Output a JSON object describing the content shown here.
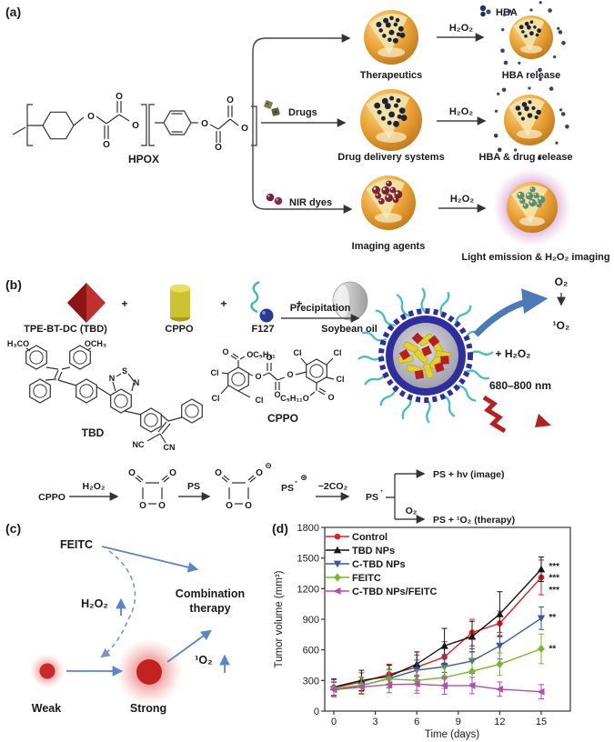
{
  "panels": {
    "a": "(a)",
    "b": "(b)",
    "c": "(c)",
    "d": "(d)"
  },
  "chem": {
    "O": "O",
    "Cl": "Cl",
    "N": "N",
    "S": "S",
    "plus": "+",
    "ominus": "⊖",
    "oplus": "⊕",
    "dot": "·"
  },
  "colors": {
    "accent_blue": "#5b86c4",
    "glow_pink": "#c77ab5",
    "sphere_orange": "#e8a33d",
    "diamond_red": "#b02020",
    "cylinder_yellow": "#cfc232",
    "cyan_hair": "#49bdbd",
    "navy_shell": "#2e2e9e",
    "dot_navy": "#1d2438",
    "dot_maroon": "#7c2433",
    "dot_green": "#5d8f6d"
  },
  "panel_a": {
    "hpox": "HPOX",
    "hba": "HBA",
    "h2o2": "H₂O₂",
    "drugs": "Drugs",
    "nir_dyes": "NIR dyes",
    "therapeutics": "Therapeutics",
    "hba_release": "HBA release",
    "dds": "Drug delivery systems",
    "hba_drug_release": "HBA & drug release",
    "imaging_agents": "Imaging agents",
    "light_emission": "Light emission & H₂O₂ imaging"
  },
  "panel_b": {
    "tpe": "TPE-BT-DC (TBD)",
    "cppo": "CPPO",
    "f127": "F127",
    "soybean": "Soybean oil",
    "precipitation": "Precipitation",
    "o2": "O₂",
    "singlet_o2": "¹O₂",
    "plus_h2o2": "+ H₂O₂",
    "nm": "680–800 nm",
    "tbd": "TBD",
    "h3co": "H₃CO",
    "och3": "OCH₃",
    "oc5h11": "OC₅H₁₁",
    "c5h11o": "C₅H₁₁O",
    "nc": "NC",
    "cn": "CN",
    "rx": {
      "cppo": "CPPO",
      "h2o2": "H₂O₂",
      "ps": "PS",
      "m2co2": "−2CO₂",
      "o2": "O₂",
      "image": "PS + hν (image)",
      "therapy": "PS + ¹O₂ (therapy)"
    }
  },
  "panel_c": {
    "feitc": "FEITC",
    "h2o2": "H₂O₂",
    "combination": "Combination",
    "therapy": "therapy",
    "singlet_o2": "¹O₂",
    "weak": "Weak",
    "strong": "Strong"
  },
  "chart_data": {
    "type": "line",
    "xlabel": "Time (days)",
    "ylabel": "Tumor volume (mm³)",
    "xlim": [
      -1,
      17
    ],
    "ylim": [
      0,
      1800
    ],
    "xticks": [
      0,
      3,
      6,
      9,
      12,
      15
    ],
    "yticks": [
      0,
      300,
      600,
      900,
      1200,
      1500,
      1800
    ],
    "grid": false,
    "legend_position": "top-left",
    "x": [
      0,
      2,
      4,
      6,
      8,
      10,
      12,
      15
    ],
    "series": [
      {
        "name": "Control",
        "color": "#e02020",
        "marker": "circle",
        "values": [
          230,
          285,
          360,
          430,
          530,
          770,
          860,
          1310
        ],
        "errors": [
          80,
          90,
          100,
          120,
          150,
          130,
          120,
          170
        ]
      },
      {
        "name": "TBD NPs",
        "color": "#141414",
        "marker": "triangle-up",
        "values": [
          235,
          300,
          340,
          460,
          640,
          730,
          950,
          1390
        ],
        "errors": [
          80,
          100,
          110,
          120,
          170,
          150,
          220,
          120
        ]
      },
      {
        "name": "C-TBD NPs",
        "color": "#3a56a8",
        "marker": "triangle-down",
        "values": [
          215,
          250,
          320,
          400,
          435,
          490,
          640,
          910
        ],
        "errors": [
          70,
          80,
          90,
          100,
          120,
          120,
          130,
          110
        ]
      },
      {
        "name": "FEITC",
        "color": "#76b82a",
        "marker": "diamond",
        "values": [
          220,
          255,
          315,
          300,
          330,
          390,
          460,
          610
        ],
        "errors": [
          70,
          80,
          90,
          100,
          110,
          120,
          110,
          145
        ]
      },
      {
        "name": "C-TBD NPs/FEITC",
        "color": "#b14fae",
        "marker": "triangle-left",
        "values": [
          210,
          235,
          260,
          265,
          250,
          250,
          215,
          190
        ],
        "errors": [
          70,
          70,
          80,
          90,
          85,
          80,
          70,
          70
        ]
      }
    ],
    "annotations": [
      {
        "text": "***",
        "x": 15.55,
        "y": 1415
      },
      {
        "text": "***",
        "x": 15.55,
        "y": 1305
      },
      {
        "text": "***",
        "x": 15.55,
        "y": 1185
      },
      {
        "text": "**",
        "x": 15.55,
        "y": 920
      },
      {
        "text": "**",
        "x": 15.55,
        "y": 610
      }
    ]
  }
}
